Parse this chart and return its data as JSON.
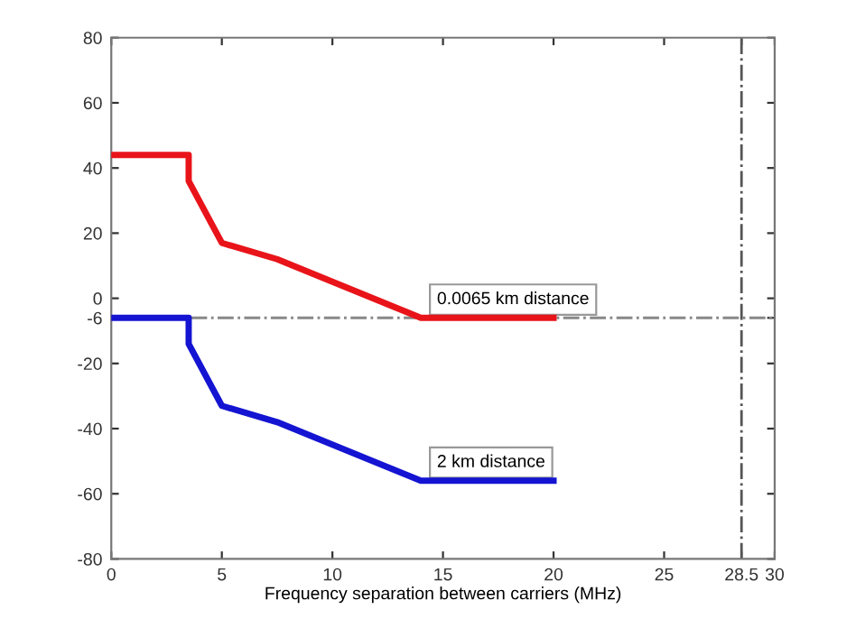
{
  "chart_data": {
    "type": "line",
    "xlabel": "Frequency separation between carriers (MHz)",
    "x": [
      0,
      3.5,
      3.5,
      5,
      7.5,
      14,
      20
    ],
    "series": [
      {
        "color": "#e8141a",
        "values": [
          44,
          44,
          36,
          17,
          12,
          -6,
          -6
        ]
      },
      {
        "color": "#1414d2",
        "values": [
          -6,
          -6,
          -14,
          -33,
          -38,
          -56,
          -56
        ]
      }
    ],
    "xlim": [
      0,
      30
    ],
    "xticks": [
      0,
      5,
      10,
      15,
      20,
      25,
      28.5,
      30
    ],
    "ylim": [
      -80,
      80
    ],
    "yticks": [
      -80,
      -60,
      -40,
      -20,
      -6,
      0,
      20,
      40,
      60,
      80
    ],
    "ref_lines": [
      {
        "axis": "y",
        "value": -6,
        "color": "#888888",
        "line_style": "dashdot"
      },
      {
        "axis": "x",
        "value": 28.5,
        "color": "#555555",
        "line_style": "dashdot"
      }
    ],
    "annotations": [
      {
        "text": "0.0065 km distance",
        "x": 14.5,
        "y": -6
      },
      {
        "text": "2 km distance",
        "x": 14.5,
        "y": -56
      }
    ],
    "grid": false,
    "legend": false,
    "marker": "none",
    "line_style": "solid"
  }
}
